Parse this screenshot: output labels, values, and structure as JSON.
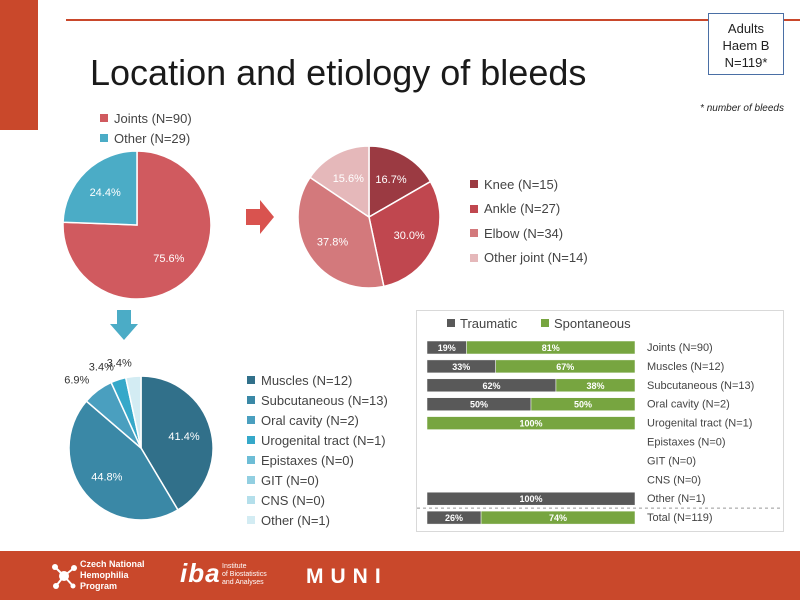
{
  "header": {
    "title": "Location and etiology of bleeds",
    "badge_lines": [
      "Adults",
      "Haem B",
      "N=119*"
    ],
    "note": "* number of bleeds"
  },
  "colors": {
    "accent": "#c9482b",
    "joints": "#d05a5f",
    "other": "#4bacc6",
    "traumatic": "#595959",
    "spontaneous": "#77a540"
  },
  "chart_data": [
    {
      "type": "pie",
      "id": "overall",
      "labels": [
        "Joints (N=90)",
        "Other (N=29)"
      ],
      "values": [
        75.6,
        24.4
      ],
      "value_labels": [
        "75.6%",
        "24.4%"
      ],
      "colors": [
        "#d05a5f",
        "#4bacc6"
      ],
      "legend": "top"
    },
    {
      "type": "pie",
      "id": "joints",
      "labels": [
        "Knee (N=15)",
        "Ankle (N=27)",
        "Elbow (N=34)",
        "Other joint (N=14)"
      ],
      "values": [
        16.7,
        30.0,
        37.8,
        15.6
      ],
      "value_labels": [
        "16.7%",
        "30.0%",
        "37.8%",
        "15.6%"
      ],
      "colors": [
        "#9b3a42",
        "#c0474f",
        "#d3797c",
        "#e5b8ba"
      ],
      "legend": "right"
    },
    {
      "type": "pie",
      "id": "other",
      "labels": [
        "Muscles (N=12)",
        "Subcutaneous (N=13)",
        "Oral cavity (N=2)",
        "Urogenital tract (N=1)",
        "Epistaxes (N=0)",
        "GIT (N=0)",
        "CNS (N=0)",
        "Other (N=1)"
      ],
      "values": [
        41.4,
        44.8,
        6.9,
        3.4,
        0,
        0,
        0,
        3.4
      ],
      "value_labels": [
        "41.4%",
        "44.8%",
        "6.9%",
        "3.4%",
        "",
        "",
        "",
        "3.4%"
      ],
      "colors": [
        "#31708a",
        "#3a88a6",
        "#4a9fbf",
        "#35a8c9",
        "#6dbdd6",
        "#92cfe1",
        "#b4dfeb",
        "#d3ecf3"
      ],
      "legend": "right"
    },
    {
      "type": "bar",
      "id": "etiology",
      "orientation": "horizontal",
      "stacked": true,
      "categories": [
        "Joints (N=90)",
        "Muscles (N=12)",
        "Subcutaneous (N=13)",
        "Oral cavity (N=2)",
        "Urogenital tract (N=1)",
        "Epistaxes (N=0)",
        "GIT (N=0)",
        "CNS (N=0)",
        "Other (N=1)",
        "Total (N=119)"
      ],
      "series": [
        {
          "name": "Traumatic",
          "values": [
            19,
            33,
            62,
            50,
            0,
            0,
            0,
            0,
            100,
            26
          ],
          "value_labels": [
            "19%",
            "33%",
            "62%",
            "50%",
            "",
            "",
            "",
            "",
            "100%",
            "26%"
          ],
          "color": "#595959"
        },
        {
          "name": "Spontaneous",
          "values": [
            81,
            67,
            38,
            50,
            100,
            0,
            0,
            0,
            0,
            74
          ],
          "value_labels": [
            "81%",
            "67%",
            "38%",
            "50%",
            "100%",
            "",
            "",
            "",
            "",
            "74%"
          ],
          "color": "#77a540"
        }
      ],
      "xlim": [
        0,
        100
      ],
      "legend": "top-left"
    }
  ],
  "footer": {
    "cz_lines": [
      "Czech National",
      "Hemophilia",
      "Program"
    ],
    "iba_mark": "iba",
    "iba_lines": [
      "Institute",
      "of Biostatistics",
      "and Analyses"
    ],
    "muni": "MUNI"
  }
}
